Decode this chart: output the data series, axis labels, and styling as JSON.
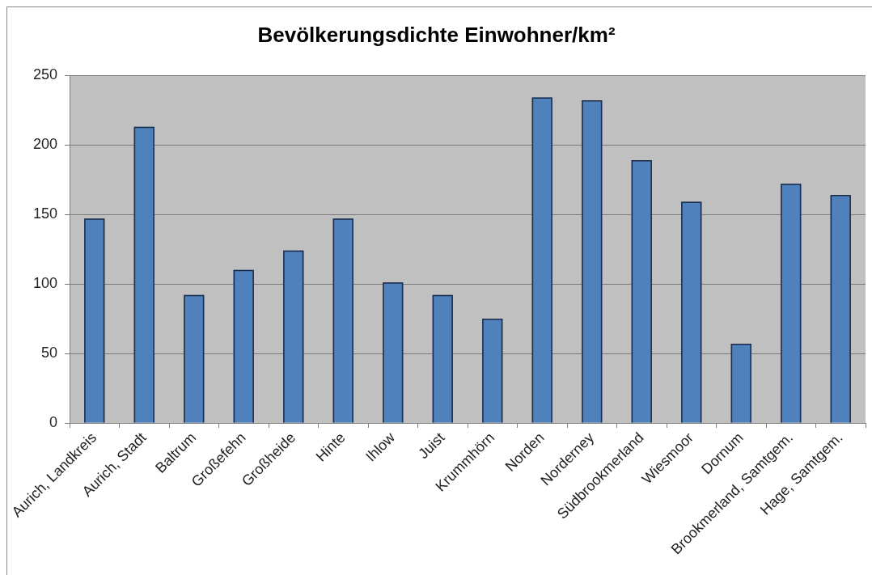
{
  "chart_data": {
    "type": "bar",
    "title": "Bevölkerungsdichte Einwohner/km²",
    "categories": [
      "Aurich, Landkreis",
      "Aurich, Stadt",
      "Baltrum",
      "Großefehn",
      "Großheide",
      "Hinte",
      "Ihlow",
      "Juist",
      "Krummhörn",
      "Norden",
      "Norderney",
      "Südbrookmerland",
      "Wiesmoor",
      "Dornum",
      "Brookmerland, Samtgem.",
      "Hage, Samtgem."
    ],
    "values": [
      147,
      213,
      92,
      110,
      124,
      147,
      101,
      92,
      75,
      234,
      232,
      189,
      159,
      57,
      172,
      164
    ],
    "color": "#4f81bd",
    "ylim": [
      0,
      250
    ],
    "yticks": [
      0,
      50,
      100,
      150,
      200,
      250
    ],
    "grid": "y"
  }
}
